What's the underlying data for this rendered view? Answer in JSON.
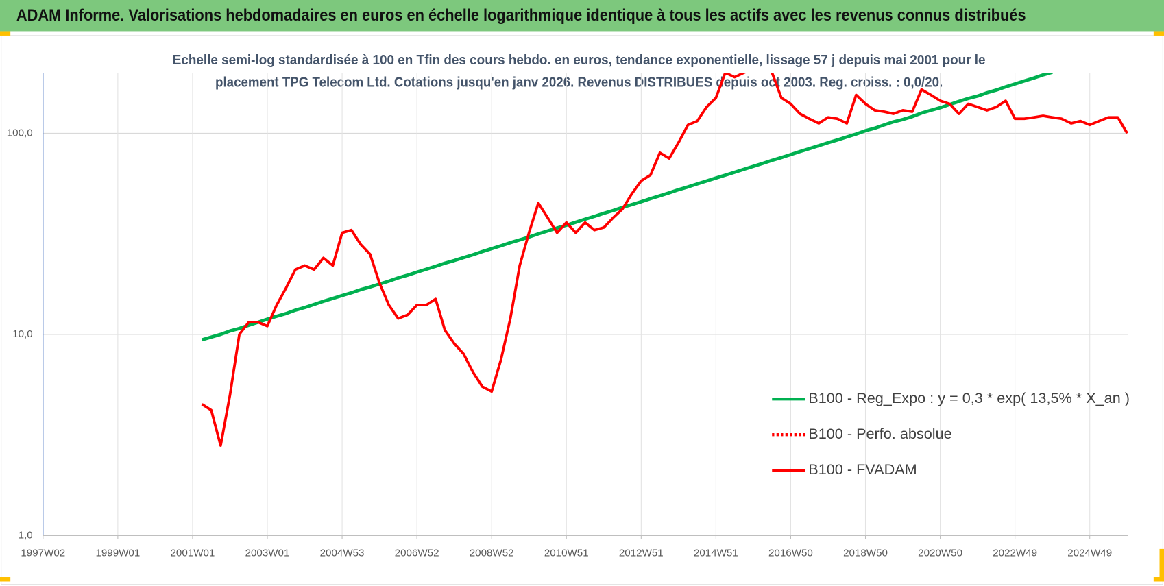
{
  "header": {
    "title": "ADAM Informe. Valorisations hebdomadaires en euros en échelle logarithmique identique à tous les actifs avec les revenus connus distribués"
  },
  "chart_data": {
    "type": "line",
    "title": [
      "Echelle semi-log standardisée à 100 en Tfin des cours hebdo. en euros, tendance exponentielle, lissage 57 j depuis mai 2001 pour le",
      "placement TPG Telecom Ltd. Cotations jusqu'en janv 2026. Revenus DISTRIBUES depuis oct 2003. Reg. croiss. : 0,0/20."
    ],
    "categories": [
      "1997W02",
      null,
      null,
      null,
      null,
      null,
      null,
      null,
      "1999W01",
      null,
      null,
      null,
      null,
      null,
      null,
      null,
      "2001W01",
      null,
      null,
      null,
      null,
      null,
      null,
      null,
      "2003W01",
      null,
      null,
      null,
      null,
      null,
      null,
      null,
      "2004W53",
      null,
      null,
      null,
      null,
      null,
      null,
      null,
      "2006W52",
      null,
      null,
      null,
      null,
      null,
      null,
      null,
      "2008W52",
      null,
      null,
      null,
      null,
      null,
      null,
      null,
      "2010W51",
      null,
      null,
      null,
      null,
      null,
      null,
      null,
      "2012W51",
      null,
      null,
      null,
      null,
      null,
      null,
      null,
      "2014W51",
      null,
      null,
      null,
      null,
      null,
      null,
      null,
      "2016W50",
      null,
      null,
      null,
      null,
      null,
      null,
      null,
      "2018W50",
      null,
      null,
      null,
      null,
      null,
      null,
      null,
      "2020W50",
      null,
      null,
      null,
      null,
      null,
      null,
      null,
      "2022W49",
      null,
      null,
      null,
      null,
      null,
      null,
      null,
      "2024W49",
      null,
      null,
      null,
      null
    ],
    "series": [
      {
        "name": "B100 - Reg_Expo : y = 0,3 * exp( 13,5% *  X_an )",
        "color": "#00b050",
        "dash": "solid",
        "values": [
          null,
          null,
          null,
          null,
          null,
          null,
          null,
          null,
          null,
          null,
          null,
          null,
          null,
          null,
          null,
          null,
          null,
          9.4,
          9.7,
          10.0,
          10.4,
          10.7,
          11.1,
          11.5,
          11.9,
          12.3,
          12.7,
          13.2,
          13.6,
          14.1,
          14.6,
          15.1,
          15.6,
          16.1,
          16.7,
          17.2,
          17.8,
          18.4,
          19.1,
          19.7,
          20.4,
          21.1,
          21.8,
          22.6,
          23.3,
          24.1,
          24.9,
          25.8,
          26.7,
          27.6,
          28.6,
          29.5,
          30.5,
          31.6,
          32.7,
          33.8,
          34.9,
          36.1,
          37.4,
          38.6,
          40.0,
          41.3,
          42.8,
          44.2,
          45.7,
          47.3,
          48.9,
          50.6,
          52.4,
          54.1,
          56.0,
          57.9,
          59.9,
          61.9,
          64.0,
          66.2,
          68.5,
          70.8,
          73.3,
          75.7,
          78.3,
          81.1,
          83.8,
          86.7,
          89.7,
          92.7,
          95.9,
          99.1,
          103,
          106,
          110,
          114,
          117,
          121,
          126,
          130,
          134,
          139,
          144,
          149,
          153,
          159,
          164,
          170,
          176,
          182,
          188,
          195,
          201,
          null,
          null,
          null,
          null,
          null,
          null,
          null,
          null
        ]
      },
      {
        "name": "B100 - Perfo. absolue",
        "color": "#ff0000",
        "dash": "dotted",
        "values": [
          null,
          null,
          null,
          null,
          null,
          null,
          null,
          null,
          null,
          null,
          null,
          null,
          null,
          null,
          null,
          null,
          null,
          null,
          null,
          null,
          null,
          null,
          null,
          null,
          null,
          null,
          null,
          null,
          null,
          null,
          null,
          null,
          null,
          null,
          null,
          null,
          null,
          null,
          null,
          null,
          null,
          null,
          null,
          null,
          null,
          null,
          null,
          null,
          null,
          null,
          null,
          null,
          null,
          null,
          null,
          null,
          null,
          null,
          null,
          null,
          null,
          null,
          null,
          null,
          null,
          null,
          null,
          null,
          null,
          null,
          null,
          null,
          null,
          null,
          null,
          null,
          null,
          null,
          null,
          null,
          null,
          null,
          null,
          null,
          null,
          null,
          null,
          null,
          null,
          null,
          null,
          null,
          null,
          null,
          null,
          null,
          null,
          null,
          null,
          null,
          null,
          null,
          null,
          null,
          null,
          null,
          null,
          null,
          null,
          null,
          null,
          null,
          null,
          null,
          null,
          null,
          null
        ]
      },
      {
        "name": "B100 - FVADAM",
        "color": "#ff0000",
        "dash": "solid",
        "values": [
          null,
          null,
          null,
          null,
          null,
          null,
          null,
          null,
          null,
          null,
          null,
          null,
          null,
          null,
          null,
          null,
          null,
          4.5,
          4.2,
          2.8,
          5.0,
          10,
          11.5,
          11.5,
          11,
          14,
          17,
          21,
          22,
          21,
          24,
          22,
          32,
          33,
          28,
          25,
          18,
          14,
          12,
          12.5,
          14,
          14,
          15,
          10.5,
          9,
          8,
          6.5,
          5.5,
          5.2,
          7.5,
          12,
          22,
          32,
          45,
          38,
          32,
          36,
          32,
          36,
          33,
          34,
          38,
          42,
          50,
          58,
          62,
          80,
          75,
          90,
          110,
          115,
          135,
          150,
          200,
          190,
          200,
          210,
          210,
          200,
          150,
          140,
          125,
          118,
          112,
          120,
          118,
          112,
          155,
          140,
          130,
          128,
          125,
          130,
          128,
          165,
          155,
          145,
          140,
          125,
          140,
          135,
          130,
          135,
          145,
          118,
          118,
          120,
          122,
          120,
          118,
          112,
          115,
          110,
          115,
          120,
          120,
          100
        ]
      }
    ],
    "ylim": [
      1,
      200
    ],
    "log_scale": true,
    "yticks": [
      {
        "value": 1,
        "label": "1,0"
      },
      {
        "value": 10,
        "label": "10,0"
      },
      {
        "value": 100,
        "label": "100,0"
      }
    ],
    "grid": true,
    "legend": "lower right"
  }
}
